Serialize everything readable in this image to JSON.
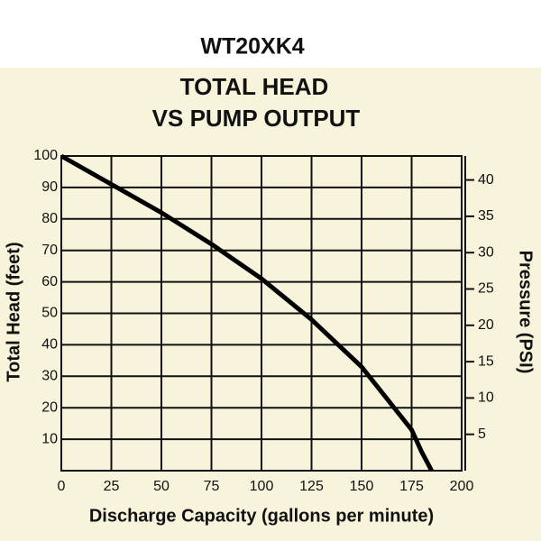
{
  "chart_data": {
    "type": "line",
    "header": "WT20XK4",
    "title": "TOTAL HEAD",
    "subtitle": "VS PUMP OUTPUT",
    "x_label": "Discharge Capacity (gallons per minute)",
    "y_label": "Total Head (feet)",
    "y2_label": "Pressure (PSI)",
    "x": [
      0,
      25,
      50,
      75,
      100,
      125,
      150,
      175,
      180,
      185
    ],
    "series": [
      {
        "color": "#000000",
        "values": [
          100,
          91,
          82,
          72,
          61,
          48,
          33,
          13,
          6,
          0
        ]
      }
    ],
    "xlim": [
      0,
      200
    ],
    "xticks": [
      0,
      25,
      50,
      75,
      100,
      125,
      150,
      175,
      200
    ],
    "ylim": [
      0,
      100
    ],
    "yticks": [
      10,
      20,
      30,
      40,
      50,
      60,
      70,
      80,
      90,
      100
    ],
    "y2lim": [
      0,
      43.3
    ],
    "y2ticks": [
      5,
      10,
      15,
      20,
      25,
      30,
      35,
      40
    ],
    "grid": true
  }
}
